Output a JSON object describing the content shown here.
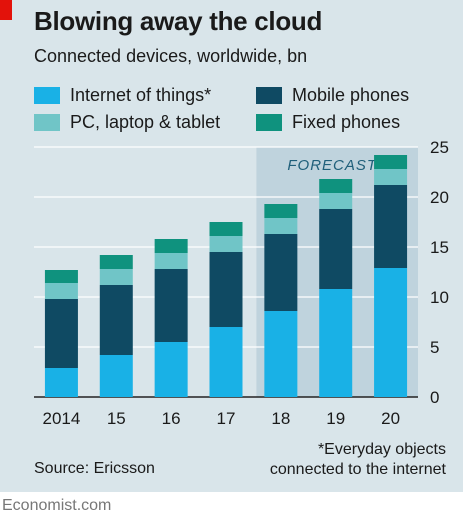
{
  "header": {
    "title": "Blowing away the cloud",
    "subtitle": "Connected devices, worldwide, bn"
  },
  "legend": [
    {
      "label": "Internet of things*",
      "color": "#19b1e6"
    },
    {
      "label": "Mobile phones",
      "color": "#0f4a63"
    },
    {
      "label": "PC, laptop & tablet",
      "color": "#70c5c7"
    },
    {
      "label": "Fixed phones",
      "color": "#0f927e"
    }
  ],
  "forecast_label": "FORECAST",
  "footer": {
    "source": "Source: Ericsson",
    "footnote_line1": "*Everyday objects",
    "footnote_line2": "connected to the internet",
    "brand": "Economist.com"
  },
  "colors": {
    "background": "#d9e5ea",
    "forecast_band": "#bfd3dd",
    "accent_red": "#e3120b"
  },
  "chart_data": {
    "type": "bar",
    "stacked": true,
    "categories": [
      "2014",
      "15",
      "16",
      "17",
      "18",
      "19",
      "20"
    ],
    "series": [
      {
        "name": "Internet of things*",
        "values": [
          2.9,
          4.2,
          5.5,
          7.0,
          8.6,
          10.8,
          12.9
        ]
      },
      {
        "name": "Mobile phones",
        "values": [
          6.9,
          7.0,
          7.3,
          7.5,
          7.7,
          8.0,
          8.3
        ]
      },
      {
        "name": "PC, laptop & tablet",
        "values": [
          1.6,
          1.6,
          1.6,
          1.6,
          1.6,
          1.6,
          1.6
        ]
      },
      {
        "name": "Fixed phones",
        "values": [
          1.3,
          1.4,
          1.4,
          1.4,
          1.4,
          1.4,
          1.4
        ]
      }
    ],
    "forecast_start": "18",
    "ylim": [
      0,
      25
    ],
    "yticks": [
      0,
      5,
      10,
      15,
      20,
      25
    ],
    "y_axis_side": "right",
    "grid": true
  }
}
